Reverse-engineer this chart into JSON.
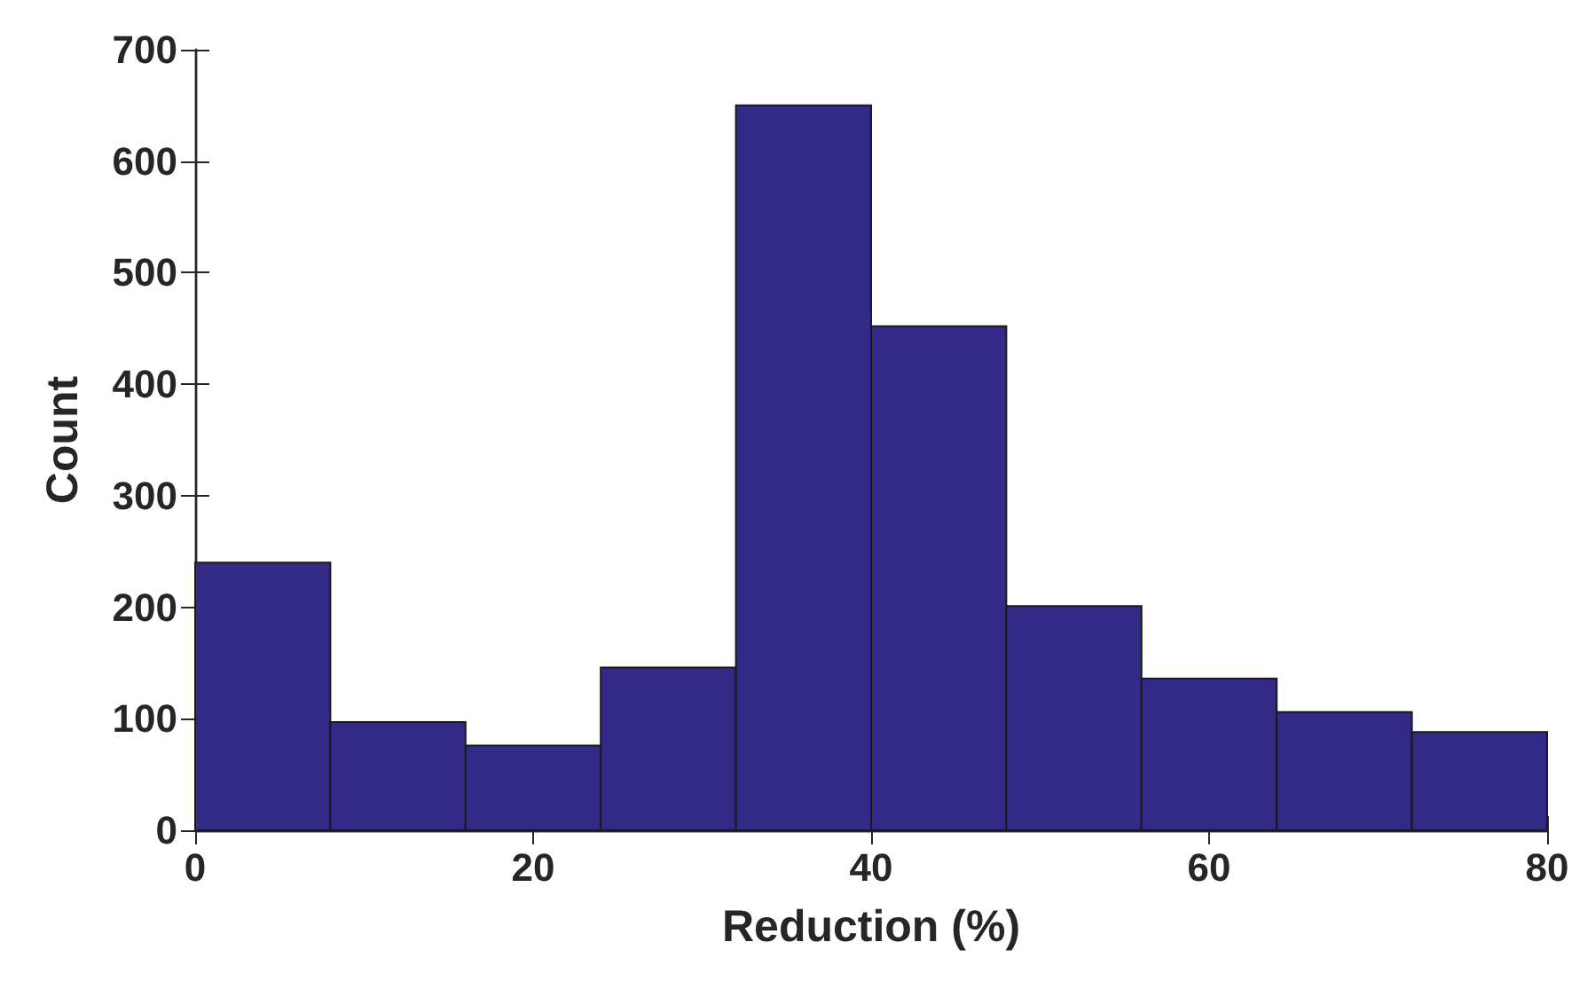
{
  "chart_data": {
    "type": "histogram",
    "xlabel": "Reduction (%)",
    "ylabel": "Count",
    "bins": [
      0,
      8,
      16,
      24,
      32,
      40,
      48,
      56,
      64,
      72,
      80
    ],
    "values": [
      240,
      97,
      76,
      146,
      650,
      452,
      201,
      136,
      106,
      88
    ],
    "color": "#332a87",
    "xlim": [
      0,
      80
    ],
    "xticks": [
      0,
      20,
      40,
      60,
      80
    ],
    "ylim": [
      0,
      700
    ],
    "yticks": [
      0,
      100,
      200,
      300,
      400,
      500,
      600,
      700
    ],
    "grid": false
  }
}
